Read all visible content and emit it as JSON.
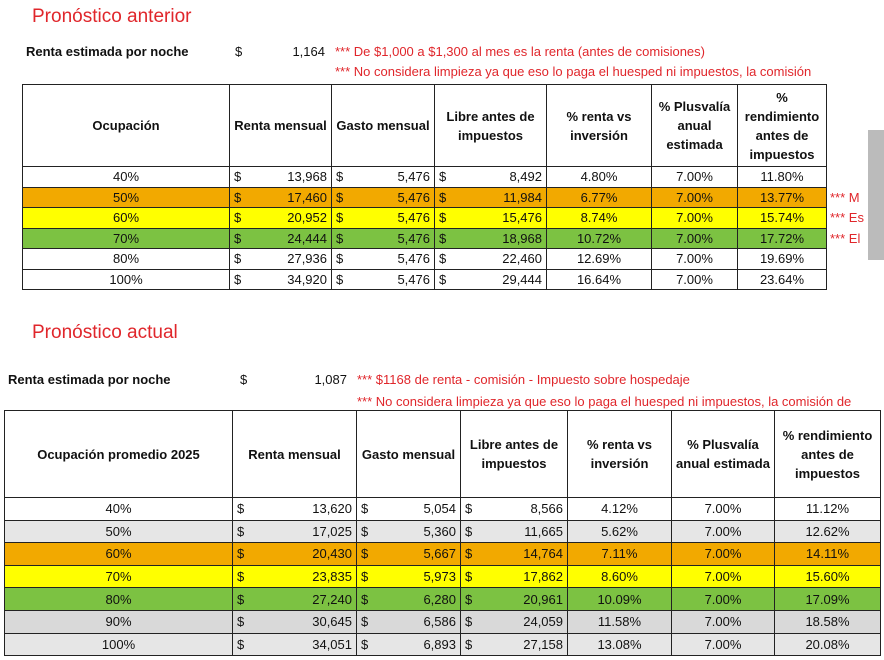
{
  "sections": [
    {
      "title": "Pronóstico anterior",
      "rent_label": "Renta estimada por noche",
      "currency": "$",
      "rent_value": "1,164",
      "notes": [
        "*** De $1,000 a $1,300 al mes es la renta (antes de comisiones)",
        "*** No considera limpieza ya que eso lo paga el huesped ni impuestos, la comisión"
      ],
      "table": {
        "headers": [
          "Ocupación",
          "Renta mensual",
          "Gasto mensual",
          "Libre antes de impuestos",
          "% renta vs inversión",
          "% Plusvalía anual estimada",
          "% rendimiento antes de impuestos"
        ],
        "rows": [
          {
            "color": "#ffffff",
            "cells": [
              "40%",
              "13,968",
              "5,476",
              "8,492",
              "4.80%",
              "7.00%",
              "11.80%"
            ]
          },
          {
            "color": "#f2a900",
            "cells": [
              "50%",
              "17,460",
              "5,476",
              "11,984",
              "6.77%",
              "7.00%",
              "13.77%"
            ]
          },
          {
            "color": "#ffff00",
            "cells": [
              "60%",
              "20,952",
              "5,476",
              "15,476",
              "8.74%",
              "7.00%",
              "15.74%"
            ]
          },
          {
            "color": "#7cc242",
            "cells": [
              "70%",
              "24,444",
              "5,476",
              "18,968",
              "10.72%",
              "7.00%",
              "17.72%"
            ]
          },
          {
            "color": "#ffffff",
            "cells": [
              "80%",
              "27,936",
              "5,476",
              "22,460",
              "12.69%",
              "7.00%",
              "19.69%"
            ]
          },
          {
            "color": "#ffffff",
            "cells": [
              "100%",
              "34,920",
              "5,476",
              "29,444",
              "16.64%",
              "7.00%",
              "23.64%"
            ]
          }
        ]
      },
      "side_notes": [
        "*** M",
        "*** Es",
        "*** El"
      ]
    },
    {
      "title": "Pronóstico actual",
      "rent_label": "Renta estimada por noche",
      "currency": "$",
      "rent_value": "1,087",
      "notes": [
        "*** $1168 de renta - comisión - Impuesto sobre hospedaje",
        "*** No considera limpieza ya que eso lo paga el huesped ni impuestos, la comisión de"
      ],
      "table": {
        "headers": [
          "Ocupación promedio 2025",
          "Renta mensual",
          "Gasto mensual",
          "Libre antes de impuestos",
          "% renta vs inversión",
          "% Plusvalía anual estimada",
          "% rendimiento antes de impuestos"
        ],
        "rows": [
          {
            "color": "#ffffff",
            "cells": [
              "40%",
              "13,620",
              "5,054",
              "8,566",
              "4.12%",
              "7.00%",
              "11.12%"
            ]
          },
          {
            "color": "#e6e6e6",
            "cells": [
              "50%",
              "17,025",
              "5,360",
              "11,665",
              "5.62%",
              "7.00%",
              "12.62%"
            ]
          },
          {
            "color": "#f2a900",
            "cells": [
              "60%",
              "20,430",
              "5,667",
              "14,764",
              "7.11%",
              "7.00%",
              "14.11%"
            ]
          },
          {
            "color": "#ffff00",
            "cells": [
              "70%",
              "23,835",
              "5,973",
              "17,862",
              "8.60%",
              "7.00%",
              "15.60%"
            ]
          },
          {
            "color": "#7cc242",
            "cells": [
              "80%",
              "27,240",
              "6,280",
              "20,961",
              "10.09%",
              "7.00%",
              "17.09%"
            ]
          },
          {
            "color": "#d9d9d9",
            "cells": [
              "90%",
              "30,645",
              "6,586",
              "24,059",
              "11.58%",
              "7.00%",
              "18.58%"
            ]
          },
          {
            "color": "#e6e6e6",
            "cells": [
              "100%",
              "34,051",
              "6,893",
              "27,158",
              "13.08%",
              "7.00%",
              "20.08%"
            ]
          }
        ]
      }
    }
  ]
}
